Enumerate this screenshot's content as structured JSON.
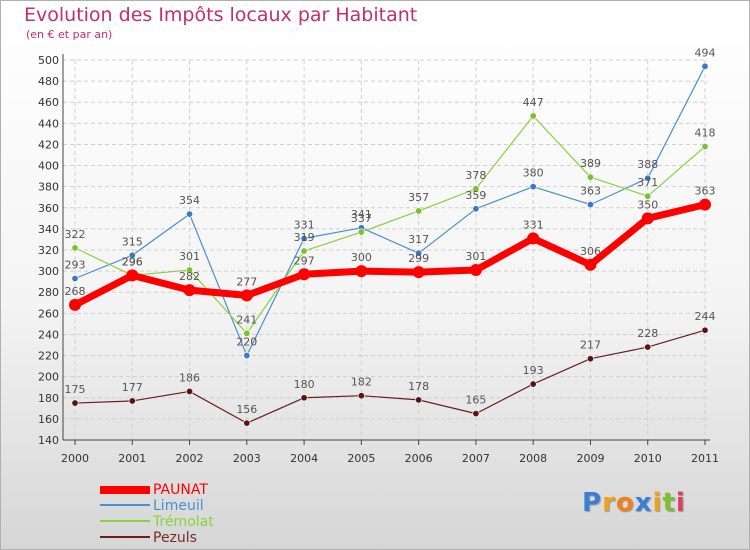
{
  "header": {
    "title": "Evolution des Impôts locaux par Habitant",
    "subtitle": "(en € et par an)"
  },
  "colors": {
    "title": "#c0306a",
    "PAUNAT": "#ff0000",
    "Limeuil": "#4a8fd0",
    "Trémolat": "#8cd040",
    "Pezuls": "#6a1e1e"
  },
  "chart_data": {
    "type": "line",
    "title": "Evolution des Impôts locaux par Habitant",
    "ylabel": "(en € et par an)",
    "xlabel": "",
    "categories": [
      "2000",
      "2001",
      "2002",
      "2003",
      "2004",
      "2005",
      "2006",
      "2007",
      "2008",
      "2009",
      "2010",
      "2011"
    ],
    "ylim": [
      140,
      500
    ],
    "yticks": [
      140,
      160,
      180,
      200,
      220,
      240,
      260,
      280,
      300,
      320,
      340,
      360,
      380,
      400,
      420,
      440,
      460,
      480,
      500
    ],
    "legend": "bottom-left",
    "series": [
      {
        "name": "Limeuil",
        "values": [
          293,
          315,
          354,
          220,
          331,
          341,
          317,
          359,
          380,
          363,
          388,
          494
        ]
      },
      {
        "name": "Trémolat",
        "values": [
          322,
          296,
          301,
          241,
          319,
          337,
          357,
          378,
          447,
          389,
          371,
          418
        ]
      },
      {
        "name": "Pezuls",
        "values": [
          175,
          177,
          186,
          156,
          180,
          182,
          178,
          165,
          193,
          217,
          228,
          244
        ]
      },
      {
        "name": "PAUNAT",
        "values": [
          268,
          296,
          282,
          277,
          297,
          300,
          299,
          301,
          331,
          306,
          350,
          363
        ]
      }
    ]
  },
  "legend": {
    "items": [
      {
        "label": "PAUNAT"
      },
      {
        "label": "Limeuil"
      },
      {
        "label": "Trémolat"
      },
      {
        "label": "Pezuls"
      }
    ]
  },
  "logo": {
    "letters": [
      "P",
      "r",
      "o",
      "x",
      "i",
      "t",
      "i"
    ],
    "colors": [
      "#3a7fd5",
      "#f0a020",
      "#f08020",
      "#3a7fd5",
      "#f0a020",
      "#80c030",
      "#e04060"
    ]
  }
}
